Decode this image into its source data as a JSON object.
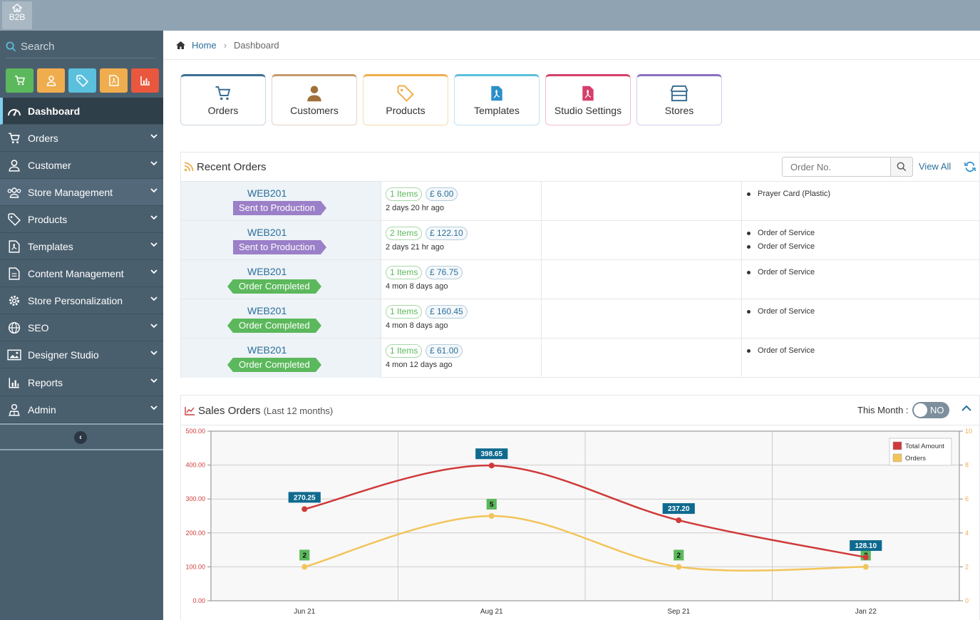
{
  "app": {
    "logo_label": "B2B"
  },
  "sidebar": {
    "search_label": "Search",
    "quick_buttons": [
      {
        "icon": "cart-icon",
        "color": "#5cb85c"
      },
      {
        "icon": "user-icon",
        "color": "#f0ad4e"
      },
      {
        "icon": "tag-icon",
        "color": "#5bc0de"
      },
      {
        "icon": "file-pdf-icon",
        "color": "#f0ad4e"
      },
      {
        "icon": "bar-chart-icon",
        "color": "#e9573f"
      }
    ],
    "items": [
      {
        "label": "Dashboard",
        "icon": "dashboard-icon",
        "active": true
      },
      {
        "label": "Orders",
        "icon": "cart-icon"
      },
      {
        "label": "Customer",
        "icon": "user-icon"
      },
      {
        "label": "Store Management",
        "icon": "users-icon"
      },
      {
        "label": "Products",
        "icon": "tag-icon"
      },
      {
        "label": "Templates",
        "icon": "file-pdf-icon"
      },
      {
        "label": "Content Management",
        "icon": "file-text-icon"
      },
      {
        "label": "Store Personalization",
        "icon": "gear-icon"
      },
      {
        "label": "SEO",
        "icon": "globe-icon"
      },
      {
        "label": "Designer Studio",
        "icon": "image-icon"
      },
      {
        "label": "Reports",
        "icon": "bar-chart-icon"
      },
      {
        "label": "Admin",
        "icon": "admin-icon"
      }
    ]
  },
  "breadcrumb": {
    "home": "Home",
    "current": "Dashboard"
  },
  "shortcuts": [
    {
      "label": "Orders",
      "icon": "cart-icon",
      "color": "#3b6f94"
    },
    {
      "label": "Customers",
      "icon": "user-icon",
      "color": "#a0703c"
    },
    {
      "label": "Products",
      "icon": "tag-icon",
      "color": "#f0ad4e"
    },
    {
      "label": "Templates",
      "icon": "file-pdf-icon",
      "color": "#5bc0de"
    },
    {
      "label": "Studio Settings",
      "icon": "file-pdf-icon",
      "color": "#d63f6b"
    },
    {
      "label": "Stores",
      "icon": "store-icon",
      "color": "#8a6fc0"
    }
  ],
  "recent_orders": {
    "title": "Recent Orders",
    "search_placeholder": "Order No.",
    "view_all": "View All",
    "rows": [
      {
        "order": "WEB201",
        "status": "Sent to Production",
        "items": "1 Items",
        "amount": "£ 6.00",
        "time": "2 days 20 hr ago",
        "products": [
          "Prayer Card (Plastic)"
        ]
      },
      {
        "order": "WEB201",
        "status": "Sent to Production",
        "items": "2 Items",
        "amount": "£ 122.10",
        "time": "2 days 21 hr ago",
        "products": [
          "Order of Service",
          "Order of Service"
        ]
      },
      {
        "order": "WEB201",
        "status": "Order Completed",
        "items": "1 Items",
        "amount": "£ 76.75",
        "time": "4 mon 8 days ago",
        "products": [
          "Order of Service"
        ]
      },
      {
        "order": "WEB201",
        "status": "Order Completed",
        "items": "1 Items",
        "amount": "£ 160.45",
        "time": "4 mon 8 days ago",
        "products": [
          "Order of Service"
        ]
      },
      {
        "order": "WEB201",
        "status": "Order Completed",
        "items": "1 Items",
        "amount": "£ 61.00",
        "time": "4 mon 12 days ago",
        "products": [
          "Order of Service"
        ]
      }
    ]
  },
  "sales_orders": {
    "title": "Sales Orders",
    "subtitle": "(Last 12 months)",
    "this_month_label": "This Month :",
    "toggle_label": "NO"
  },
  "chart_data": {
    "type": "line",
    "categories": [
      "Jun 21",
      "Aug 21",
      "Sep 21",
      "Jan 22"
    ],
    "series": [
      {
        "name": "Total Amount",
        "values": [
          270.25,
          398.65,
          237.2,
          128.1
        ],
        "color": "#d03a3a",
        "axis": "left",
        "labels": [
          "270.25",
          "398.65",
          "237.20",
          "128.10"
        ]
      },
      {
        "name": "Orders",
        "values": [
          2,
          5,
          2,
          2
        ],
        "color": "#f2c45a",
        "axis": "right",
        "labels": [
          "2",
          "5",
          "2",
          "2"
        ]
      }
    ],
    "y_left": {
      "range": [
        0,
        500
      ],
      "ticks": [
        "0.00",
        "100.00",
        "200.00",
        "300.00",
        "400.00",
        "500.00"
      ],
      "color": "#d03a3a"
    },
    "y_right": {
      "range": [
        0,
        10
      ],
      "ticks": [
        "0",
        "2",
        "4",
        "6",
        "8",
        "10"
      ],
      "color": "#f0ad4e"
    },
    "grid": true,
    "legend": "top-right"
  }
}
